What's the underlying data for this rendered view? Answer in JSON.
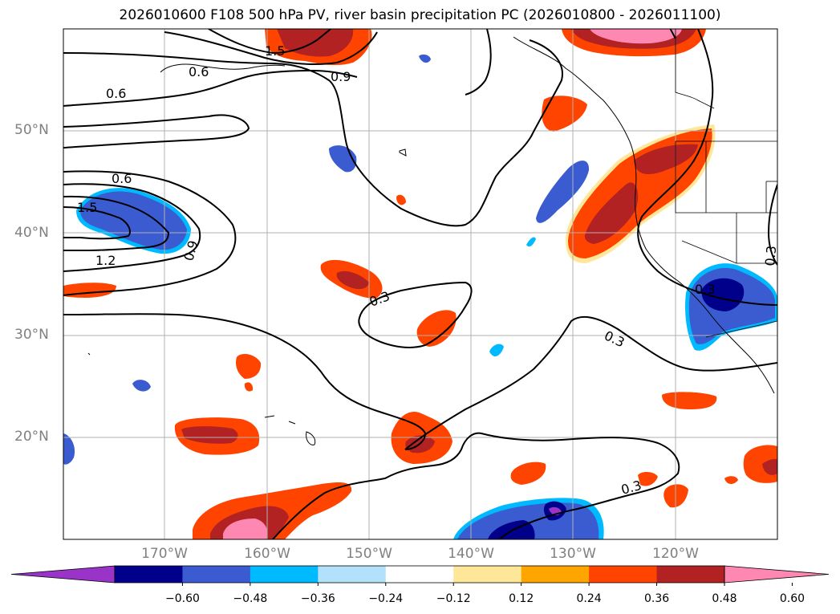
{
  "title": "2026010600 F108 500 hPa PV, river basin precipitation PC (2026010800 - 2026011100)",
  "lat_labels": [
    "50°N",
    "40°N",
    "30°N",
    "20°N"
  ],
  "lon_labels": [
    "170°W",
    "160°W",
    "150°W",
    "140°W",
    "130°W",
    "120°W"
  ],
  "contour_labels": [
    "0.6",
    "0.6",
    "0.9",
    "1.5",
    "0.6",
    "1.5",
    "1.2",
    "0.9",
    "0.3",
    "0.3",
    "0.3",
    "0.3",
    "0.3"
  ],
  "colorbar": {
    "ticks": [
      "−0.60",
      "−0.48",
      "−0.36",
      "−0.24",
      "−0.12",
      "0.12",
      "0.24",
      "0.36",
      "0.48",
      "0.60"
    ],
    "colors": [
      "#9a34c8",
      "#00008b",
      "#3b5cd0",
      "#00baff",
      "#b2e2fb",
      "#ffffff",
      "#ffe79a",
      "#ffa500",
      "#ff4400",
      "#b22222",
      "#ff88b2"
    ]
  },
  "colors": {
    "contour": "#000000",
    "grid": "#b0b0b0",
    "axis_label": "#808080"
  }
}
